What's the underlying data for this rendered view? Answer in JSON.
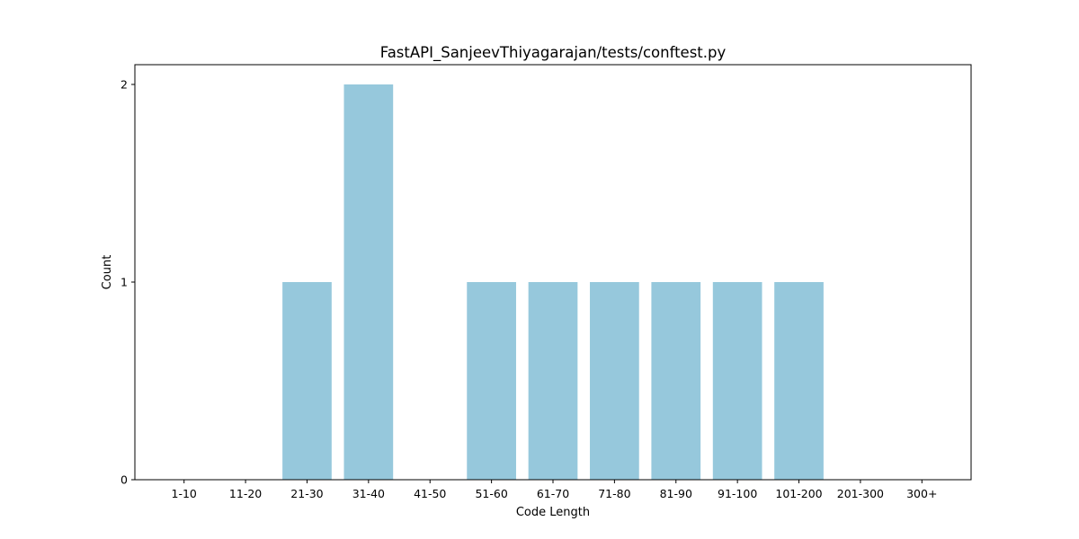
{
  "chart_data": {
    "type": "bar",
    "title": "FastAPI_SanjeevThiyagarajan/tests/conftest.py",
    "xlabel": "Code Length",
    "ylabel": "Count",
    "categories": [
      "1-10",
      "11-20",
      "21-30",
      "31-40",
      "41-50",
      "51-60",
      "61-70",
      "71-80",
      "81-90",
      "91-100",
      "101-200",
      "201-300",
      "300+"
    ],
    "values": [
      0,
      0,
      1,
      2,
      0,
      1,
      1,
      1,
      1,
      1,
      1,
      0,
      0
    ],
    "ylim": [
      0,
      2.1
    ],
    "yticks": [
      0,
      1,
      2
    ],
    "bar_color": "#96c8dc",
    "grid": false,
    "legend": "none"
  }
}
